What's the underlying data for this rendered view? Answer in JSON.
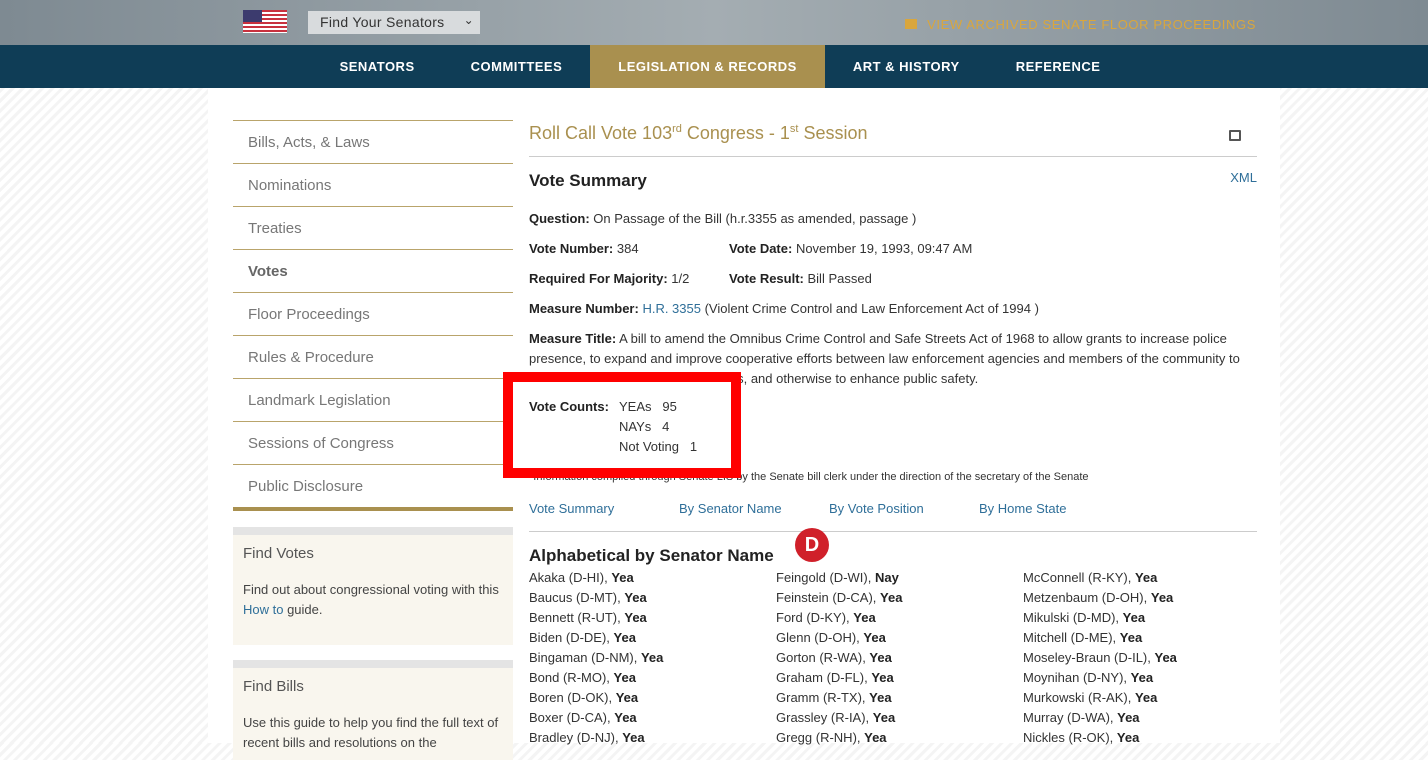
{
  "header": {
    "senator_select": "Find Your Senators",
    "archive_link": "VIEW ARCHIVED SENATE FLOOR PROCEEDINGS"
  },
  "nav": [
    "SENATORS",
    "COMMITTEES",
    "LEGISLATION & RECORDS",
    "ART & HISTORY",
    "REFERENCE"
  ],
  "sidebar": {
    "items": [
      "Bills, Acts, & Laws",
      "Nominations",
      "Treaties",
      "Votes",
      "Floor Proceedings",
      "Rules & Procedure",
      "Landmark Legislation",
      "Sessions of Congress",
      "Public Disclosure"
    ],
    "find_votes": {
      "title": "Find Votes",
      "text1": "Find out about congressional voting with this ",
      "link": "How to",
      "text2": " guide."
    },
    "find_bills": {
      "title": "Find Bills",
      "text": "Use this guide to help you find the full text of recent bills and resolutions on the"
    }
  },
  "main": {
    "title_pre": "Roll Call Vote 103",
    "title_sup1": "rd",
    "title_mid": " Congress - 1",
    "title_sup2": "st",
    "title_post": " Session",
    "xml": "XML",
    "summary_heading": "Vote Summary",
    "question_label": "Question:",
    "question": " On Passage of the Bill (h.r.3355 as amended, passage )",
    "vote_number_label": "Vote Number:",
    "vote_number": " 384",
    "vote_date_label": "Vote Date:",
    "vote_date": " November 19, 1993, 09:47 AM",
    "majority_label": "Required For Majority:",
    "majority": " 1/2",
    "result_label": "Vote Result:",
    "result": " Bill Passed",
    "measure_number_label": "Measure Number:",
    "measure_number": "H.R. 3355",
    "measure_name": " (Violent Crime Control and Law Enforcement Act of 1994 )",
    "measure_title_label": "Measure Title:",
    "measure_title": " A bill to amend the Omnibus Crime Control and Safe Streets Act of 1968 to allow grants to increase police presence, to expand and improve cooperative efforts between law enforcement agencies and members of the community to address crime and disorder problems, and otherwise to enhance public safety.",
    "vote_counts_label": "Vote Counts:",
    "yeas": "YEAs   95",
    "nays": "NAYs   4",
    "not_voting": "Not Voting   1",
    "footnote": "*Information compiled through Senate LIS by the Senate bill clerk under the direction of the secretary of the Senate",
    "tabs": [
      "Vote Summary",
      "By Senator Name",
      "By Vote Position",
      "By Home State"
    ],
    "alpha_heading": "Alphabetical by Senator Name",
    "columns": [
      [
        [
          "Akaka (D-HI), ",
          "Yea"
        ],
        [
          "Baucus (D-MT), ",
          "Yea"
        ],
        [
          "Bennett (R-UT), ",
          "Yea"
        ],
        [
          "Biden (D-DE), ",
          "Yea"
        ],
        [
          "Bingaman (D-NM), ",
          "Yea"
        ],
        [
          "Bond (R-MO), ",
          "Yea"
        ],
        [
          "Boren (D-OK), ",
          "Yea"
        ],
        [
          "Boxer (D-CA), ",
          "Yea"
        ],
        [
          "Bradley (D-NJ), ",
          "Yea"
        ]
      ],
      [
        [
          "Feingold (D-WI), ",
          "Nay"
        ],
        [
          "Feinstein (D-CA), ",
          "Yea"
        ],
        [
          "Ford (D-KY), ",
          "Yea"
        ],
        [
          "Glenn (D-OH), ",
          "Yea"
        ],
        [
          "Gorton (R-WA), ",
          "Yea"
        ],
        [
          "Graham (D-FL), ",
          "Yea"
        ],
        [
          "Gramm (R-TX), ",
          "Yea"
        ],
        [
          "Grassley (R-IA), ",
          "Yea"
        ],
        [
          "Gregg (R-NH), ",
          "Yea"
        ]
      ],
      [
        [
          "McConnell (R-KY), ",
          "Yea"
        ],
        [
          "Metzenbaum (D-OH), ",
          "Yea"
        ],
        [
          "Mikulski (D-MD), ",
          "Yea"
        ],
        [
          "Mitchell (D-ME), ",
          "Yea"
        ],
        [
          "Moseley-Braun (D-IL), ",
          "Yea"
        ],
        [
          "Moynihan (D-NY), ",
          "Yea"
        ],
        [
          "Murkowski (R-AK), ",
          "Yea"
        ],
        [
          "Murray (D-WA), ",
          "Yea"
        ],
        [
          "Nickles (R-OK), ",
          "Yea"
        ]
      ]
    ]
  },
  "colors": {
    "navy": "#0f3d56",
    "gold": "#a9904f",
    "link": "#2f6f99",
    "highlight": "#ff0000"
  }
}
